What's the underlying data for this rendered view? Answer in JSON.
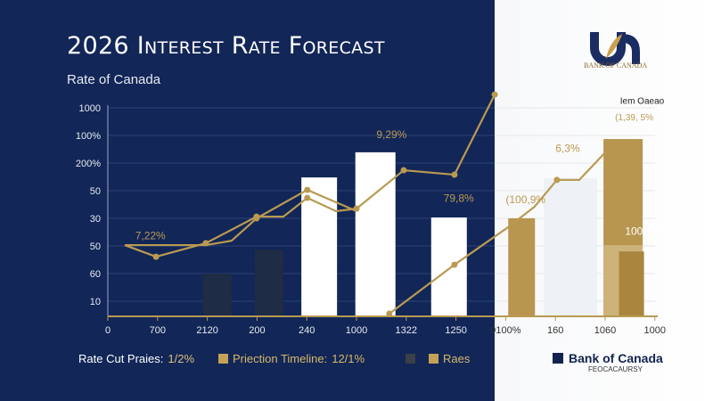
{
  "header": {
    "title": "2026 Interest Rate Forecast",
    "subtitle": "Rate of Canada"
  },
  "logo": {
    "text": "BANK OF CANADA"
  },
  "colors": {
    "navy": "#122657",
    "gold": "#b99a52",
    "white": "#ffffff",
    "dark_bar": "#1e2b45"
  },
  "chart_data": {
    "type": "bar+line",
    "title": "2026 Interest Rate Forecast",
    "y_tick_labels": [
      "1000",
      "100%",
      "200%",
      "50",
      "30",
      "50",
      "60",
      "10"
    ],
    "x_tick_labels": [
      "0",
      "700",
      "2120",
      "200",
      "240",
      "1000",
      "1322",
      "1250",
      "9100%",
      "160",
      "1060",
      "1000"
    ],
    "grid": true,
    "bars": [
      {
        "x": 2.2,
        "value": 2.0,
        "style": "dark"
      },
      {
        "x": 3.24,
        "value": 2.87,
        "style": "dark"
      },
      {
        "x": 4.25,
        "value": 5.48,
        "style": "white"
      },
      {
        "x": 5.38,
        "value": 6.39,
        "style": "white"
      },
      {
        "x": 6.86,
        "value": 4.03,
        "style": "white"
      },
      {
        "x": 8.32,
        "value": 4.0,
        "style": "gold"
      },
      {
        "x": 10.36,
        "value": 6.87,
        "style": "gold"
      },
      {
        "x": 10.36,
        "value": 3.03,
        "style": "gold-light"
      },
      {
        "x": 10.53,
        "value": 2.8,
        "style": "gold-dark"
      }
    ],
    "series": [
      {
        "x": [
          0.34,
          0.97,
          1.97,
          2.99,
          3.53,
          4.01,
          4.59,
          5.0,
          5.95,
          6.97,
          7.78
        ],
        "y": [
          3.03,
          2.61,
          3.1,
          4.06,
          4.06,
          4.74,
          4.26,
          4.35,
          5.74,
          5.58,
          8.48
        ],
        "markers": [
          1,
          2,
          3,
          5,
          7,
          8,
          9,
          10
        ]
      },
      {
        "x": [
          0.34,
          1.97,
          2.49,
          2.99,
          4.01,
          5.0
        ],
        "y": [
          3.03,
          3.03,
          3.19,
          4.0,
          5.03,
          4.26
        ],
        "markers": [
          3,
          4
        ]
      },
      {
        "x": [
          5.66,
          6.97,
          8.05,
          8.58,
          9.03,
          9.48,
          10.02
        ],
        "y": [
          0.55,
          2.32,
          3.68,
          4.42,
          5.39,
          5.39,
          6.42
        ],
        "markers": [
          0,
          1,
          4
        ]
      }
    ],
    "annotations": [
      {
        "text": "7,22%",
        "x": 0.55,
        "y": 3.25,
        "color": "#b99a52"
      },
      {
        "text": "9,29%",
        "x": 5.4,
        "y": 6.9,
        "color": "#b99a52"
      },
      {
        "text": "79,8%",
        "x": 6.75,
        "y": 4.6,
        "color": "#b99a52"
      },
      {
        "text": "(100,9%",
        "x": 8.0,
        "y": 4.55,
        "color": "#b99a52"
      },
      {
        "text": "6,3%",
        "x": 9.0,
        "y": 6.4,
        "color": "#b99a52"
      },
      {
        "text": "(1,39, 5%",
        "x": 10.2,
        "y": 7.55,
        "color": "#b99a52"
      },
      {
        "text": "100 8%",
        "x": 10.4,
        "y": 3.4,
        "color": "#ffffff"
      },
      {
        "text": "Iem Oaeao",
        "x": 10.3,
        "y": 8.15,
        "color": "#222222"
      }
    ]
  },
  "legend": [
    {
      "label": "Rate Cut Praies: ",
      "value": "1/2%",
      "color": "#ffffff"
    },
    {
      "label": "Priection Timeline:",
      "value": "12/1%",
      "color": "#b99a52"
    },
    {
      "label": "",
      "value": "",
      "color": "#3a3f48"
    },
    {
      "label": "Raes",
      "value": "",
      "color": "#b99a52"
    }
  ],
  "brand": {
    "name": "Bank of Canada",
    "sub": "FEOCACAURSY"
  }
}
